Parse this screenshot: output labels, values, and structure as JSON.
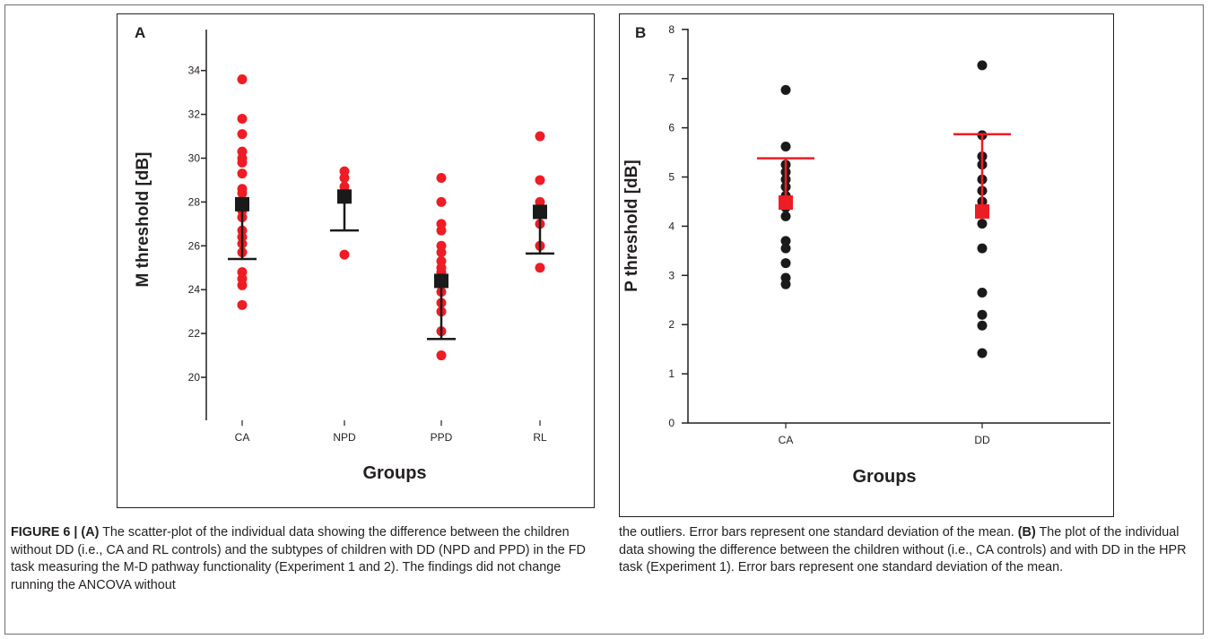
{
  "colors": {
    "red": "#ee1c24",
    "black": "#1a1a1a",
    "axis": "#231f20",
    "caption_text": "#231f20"
  },
  "chart_data": [
    {
      "panel": "A",
      "type": "scatter",
      "xlabel": "Groups",
      "ylabel": "M threshold [dB]",
      "categories": [
        "CA",
        "NPD",
        "PPD",
        "RL"
      ],
      "ylim": [
        18.2,
        36.2
      ],
      "yticks": [
        20,
        22,
        24,
        26,
        28,
        30,
        32,
        34
      ],
      "grid": false,
      "points": {
        "CA": [
          33.6,
          31.8,
          31.1,
          30.3,
          30.0,
          29.8,
          29.3,
          28.6,
          28.4,
          27.9,
          27.6,
          27.3,
          26.7,
          26.4,
          26.1,
          25.7,
          24.8,
          24.5,
          24.2,
          23.3
        ],
        "NPD": [
          29.4,
          29.1,
          28.7,
          25.6
        ],
        "PPD": [
          29.1,
          28.0,
          27.0,
          26.7,
          26.0,
          25.7,
          25.3,
          25.0,
          24.8,
          24.4,
          23.9,
          23.4,
          23.0,
          22.1,
          21.0
        ],
        "RL": [
          31.0,
          29.0,
          28.0,
          27.0,
          26.0,
          25.0
        ]
      },
      "means": [
        27.9,
        28.25,
        24.4,
        27.55
      ],
      "sd_bar_ends": [
        25.4,
        26.7,
        21.75,
        25.65
      ],
      "point_color": "#ee1c24",
      "mean_color": "#1a1a1a"
    },
    {
      "panel": "B",
      "type": "scatter",
      "xlabel": "Groups",
      "ylabel": "P threshold [dB]",
      "categories": [
        "CA",
        "DD"
      ],
      "ylim": [
        0,
        8
      ],
      "yticks": [
        0,
        1,
        2,
        3,
        4,
        5,
        6,
        7,
        8
      ],
      "grid": false,
      "points": {
        "CA": [
          6.77,
          5.62,
          5.25,
          5.1,
          4.95,
          4.8,
          4.62,
          4.5,
          4.38,
          4.2,
          3.7,
          3.55,
          3.25,
          2.95,
          2.82
        ],
        "DD": [
          7.27,
          5.85,
          5.42,
          5.25,
          4.95,
          4.72,
          4.5,
          4.3,
          4.05,
          3.55,
          2.65,
          2.2,
          1.98,
          1.42
        ]
      },
      "means": [
        4.48,
        4.3
      ],
      "sd_bar_ends": [
        5.38,
        5.87
      ],
      "point_color": "#1a1a1a",
      "mean_color": "#ee1c24"
    }
  ],
  "caption": {
    "figure_label": "FIGURE 6 |",
    "a_label": "(A)",
    "text_a": "The scatter-plot of the individual data showing the difference between the children without DD (i.e., CA and RL controls) and the subtypes of children with DD (NPD and PPD) in the FD task measuring the M-D pathway functionality (Experiment 1 and 2). The findings did not change running the ANCOVA without the outliers. Error bars represent one standard deviation of the mean.",
    "b_label": "(B)",
    "text_b": "The plot of the individual data showing the difference between the children without (i.e., CA controls) and with DD in the HPR task (Experiment 1). Error bars represent one standard deviation of the mean."
  }
}
